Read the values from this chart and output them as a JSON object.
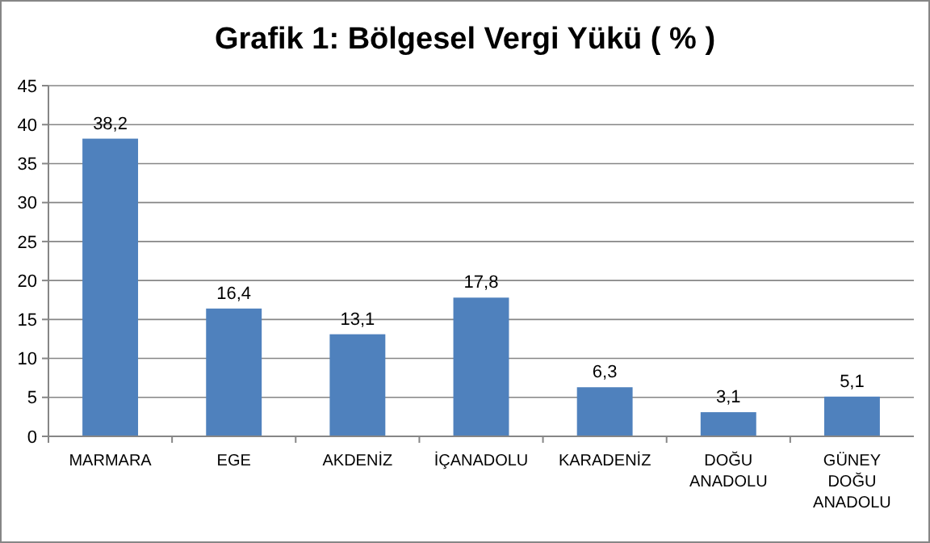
{
  "chart_data": {
    "type": "bar",
    "title": "Grafik 1: Bölgesel Vergi Yükü ( % )",
    "categories": [
      "MARMARA",
      "EGE",
      "AKDENİZ",
      "İÇANADOLU",
      "KARADENİZ",
      "DOĞU ANADOLU",
      "GÜNEY DOĞU ANADOLU"
    ],
    "values": [
      38.2,
      16.4,
      13.1,
      17.8,
      6.3,
      3.1,
      5.1
    ],
    "value_labels": [
      "38,2",
      "16,4",
      "13,1",
      "17,8",
      "6,3",
      "3,1",
      "5,1"
    ],
    "color": "#4f81bd",
    "ylim": [
      0,
      45
    ],
    "yticks": [
      0,
      5,
      10,
      15,
      20,
      25,
      30,
      35,
      40,
      45
    ],
    "grid": "y"
  }
}
